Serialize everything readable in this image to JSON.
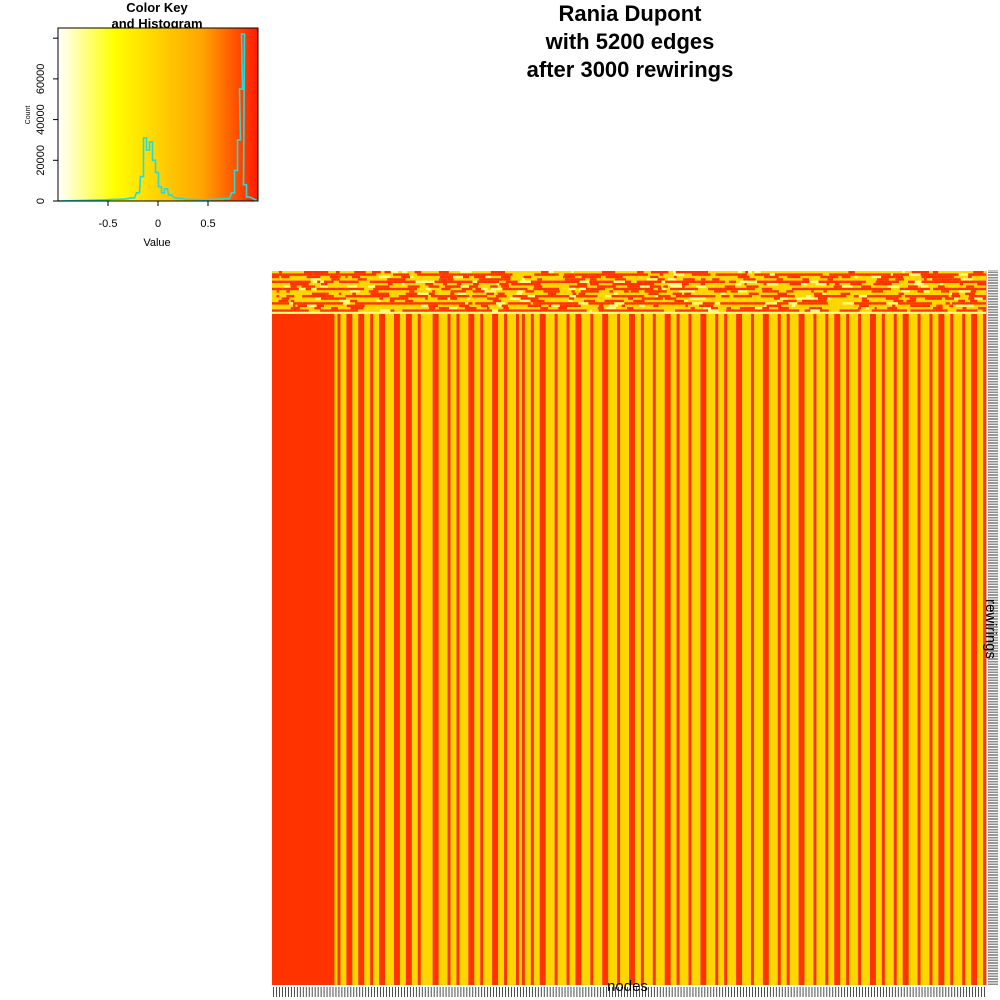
{
  "chart_data": [
    {
      "type": "heatmap",
      "title_lines": [
        "Rania Dupont",
        "with 5200 edges",
        "after 3000 rewirings"
      ],
      "xlabel": "nodes",
      "ylabel": "rewirings",
      "colors": {
        "high": "#ff3300",
        "mid": "#ffd700",
        "light": "#ffff80",
        "border": "#000000"
      },
      "n_columns": 240,
      "top_band_fraction": 0.06,
      "high_columns": [
        0,
        1,
        2,
        3,
        4,
        5,
        6,
        7,
        8,
        9,
        10,
        11,
        12,
        13,
        14,
        15,
        16,
        17,
        18,
        19,
        20,
        22,
        25,
        26,
        29,
        30,
        33,
        36,
        37,
        41,
        42,
        45,
        46,
        49,
        54,
        55,
        59,
        62,
        66,
        67,
        70,
        74,
        75,
        78,
        82,
        84,
        87,
        90,
        91,
        95,
        99,
        102,
        103,
        107,
        111,
        112,
        116,
        120,
        121,
        124,
        128,
        132,
        133,
        136,
        140,
        144,
        145,
        149,
        152,
        156,
        157,
        161,
        165,
        166,
        170,
        173,
        177,
        178,
        182,
        186,
        189,
        190,
        193,
        197,
        201,
        202,
        205,
        209,
        212,
        213,
        217,
        221,
        224,
        225,
        228,
        232,
        235,
        236,
        239
      ]
    },
    {
      "type": "bar",
      "title_lines": [
        "Color Key",
        "and Histogram"
      ],
      "xlabel": "Value",
      "ylabel": "Count",
      "xlim": [
        -1,
        1
      ],
      "ylim": [
        0,
        85000
      ],
      "xticks": [
        "-0.5",
        "0",
        "0.5"
      ],
      "yticks": [
        "0",
        "20000",
        "40000",
        "60000"
      ],
      "color_gradient": [
        "#ffffff",
        "#ffff00",
        "#ffa500",
        "#ff1a00"
      ],
      "histogram_color": "#22dddd",
      "bins": [
        {
          "x": -0.55,
          "count": 500
        },
        {
          "x": -0.45,
          "count": 800
        },
        {
          "x": -0.35,
          "count": 900
        },
        {
          "x": -0.25,
          "count": 1500
        },
        {
          "x": -0.2,
          "count": 4000
        },
        {
          "x": -0.16,
          "count": 12000
        },
        {
          "x": -0.13,
          "count": 31000
        },
        {
          "x": -0.1,
          "count": 25000
        },
        {
          "x": -0.07,
          "count": 29000
        },
        {
          "x": -0.04,
          "count": 20000
        },
        {
          "x": -0.01,
          "count": 14000
        },
        {
          "x": 0.02,
          "count": 7000
        },
        {
          "x": 0.05,
          "count": 4000
        },
        {
          "x": 0.08,
          "count": 6000
        },
        {
          "x": 0.12,
          "count": 3000
        },
        {
          "x": 0.18,
          "count": 1500
        },
        {
          "x": 0.3,
          "count": 800
        },
        {
          "x": 0.45,
          "count": 600
        },
        {
          "x": 0.6,
          "count": 900
        },
        {
          "x": 0.7,
          "count": 1200
        },
        {
          "x": 0.75,
          "count": 4000
        },
        {
          "x": 0.78,
          "count": 15000
        },
        {
          "x": 0.81,
          "count": 30000
        },
        {
          "x": 0.83,
          "count": 55000
        },
        {
          "x": 0.85,
          "count": 82000
        },
        {
          "x": 0.87,
          "count": 8000
        },
        {
          "x": 0.9,
          "count": 2000
        }
      ]
    }
  ]
}
